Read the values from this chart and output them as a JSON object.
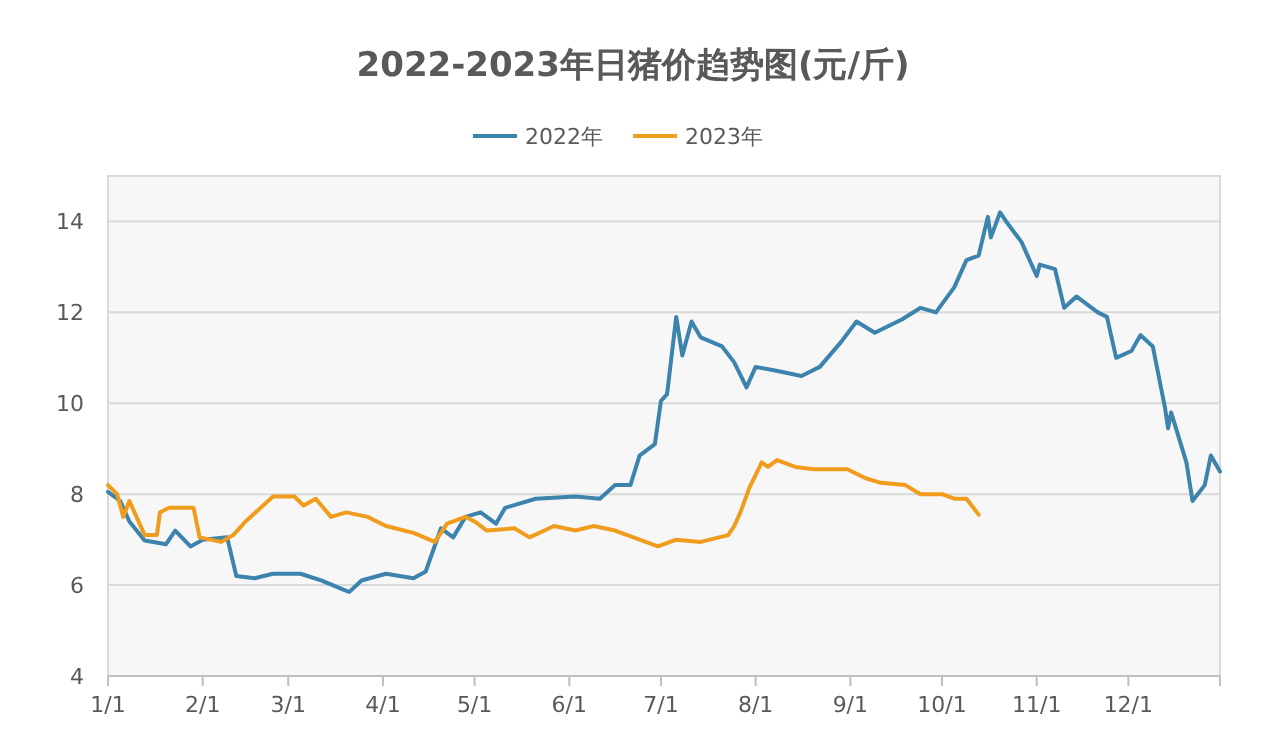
{
  "chart_data": {
    "type": "line",
    "title": "2022-2023年日猪价趋势图(元/斤)",
    "legend": "top",
    "grid": "y",
    "marker": "none",
    "line_style": "solid",
    "xlim": [
      "--01-01",
      "--12-31"
    ],
    "xticks": [
      {
        "value": "--01-01",
        "label": "1/1"
      },
      {
        "value": "--02-01",
        "label": "2/1"
      },
      {
        "value": "--03-01",
        "label": "3/1"
      },
      {
        "value": "--04-01",
        "label": "4/1"
      },
      {
        "value": "--05-01",
        "label": "5/1"
      },
      {
        "value": "--06-01",
        "label": "6/1"
      },
      {
        "value": "--07-01",
        "label": "7/1"
      },
      {
        "value": "--08-01",
        "label": "8/1"
      },
      {
        "value": "--09-01",
        "label": "9/1"
      },
      {
        "value": "--10-01",
        "label": "10/1"
      },
      {
        "value": "--11-01",
        "label": "11/1"
      },
      {
        "value": "--12-01",
        "label": "12/1"
      }
    ],
    "ylim": [
      4,
      15
    ],
    "yticks": [
      4,
      6,
      8,
      10,
      12,
      14
    ],
    "series": [
      {
        "name": "2022年",
        "color": "#3c84ad",
        "x": [
          "--01-01",
          "--01-05",
          "--01-08",
          "--01-13",
          "--01-20",
          "--01-23",
          "--01-28",
          "--02-01",
          "--02-09",
          "--02-12",
          "--02-18",
          "--02-24",
          "--03-05",
          "--03-12",
          "--03-19",
          "--03-21",
          "--03-25",
          "--04-02",
          "--04-11",
          "--04-15",
          "--04-20",
          "--04-24",
          "--04-28",
          "--05-03",
          "--05-08",
          "--05-11",
          "--05-21",
          "--06-03",
          "--06-11",
          "--06-16",
          "--06-21",
          "--06-24",
          "--06-29",
          "--07-01",
          "--07-03",
          "--07-06",
          "--07-08",
          "--07-11",
          "--07-14",
          "--07-21",
          "--07-25",
          "--07-29",
          "--08-01",
          "--08-09",
          "--08-16",
          "--08-22",
          "--08-29",
          "--09-03",
          "--09-09",
          "--09-18",
          "--09-24",
          "--09-29",
          "--10-05",
          "--10-09",
          "--10-13",
          "--10-16",
          "--10-17",
          "--10-20",
          "--10-22",
          "--10-27",
          "--11-01",
          "--11-02",
          "--11-07",
          "--11-10",
          "--11-14",
          "--11-21",
          "--11-24",
          "--11-27",
          "--12-02",
          "--12-05",
          "--12-09",
          "--12-13",
          "--12-14",
          "--12-15",
          "--12-20",
          "--12-22",
          "--12-26",
          "--12-28",
          "--12-31"
        ],
        "values": [
          8.05,
          7.85,
          7.4,
          6.98,
          6.9,
          7.2,
          6.85,
          7.0,
          7.05,
          6.2,
          6.15,
          6.25,
          6.25,
          6.1,
          5.9,
          5.85,
          6.1,
          6.25,
          6.15,
          6.3,
          7.25,
          7.05,
          7.5,
          7.6,
          7.35,
          7.7,
          7.9,
          7.95,
          7.9,
          8.2,
          8.2,
          8.85,
          9.1,
          10.05,
          10.2,
          11.9,
          11.05,
          11.8,
          11.45,
          11.25,
          10.9,
          10.35,
          10.8,
          10.7,
          10.6,
          10.8,
          11.35,
          11.8,
          11.55,
          11.85,
          12.1,
          12.0,
          12.55,
          13.15,
          13.25,
          14.1,
          13.65,
          14.2,
          14.0,
          13.55,
          12.8,
          13.05,
          12.95,
          12.1,
          12.35,
          12.0,
          11.9,
          11.0,
          11.15,
          11.5,
          11.25,
          9.9,
          9.45,
          9.8,
          8.7,
          7.85,
          8.2,
          8.85,
          8.5
        ]
      },
      {
        "name": "2023年",
        "color": "#f09c1c",
        "x": [
          "--01-01",
          "--01-04",
          "--01-06",
          "--01-08",
          "--01-10",
          "--01-13",
          "--01-17",
          "--01-18",
          "--01-21",
          "--01-29",
          "--01-31",
          "--02-07",
          "--02-11",
          "--02-15",
          "--02-20",
          "--02-24",
          "--03-03",
          "--03-06",
          "--03-10",
          "--03-15",
          "--03-20",
          "--03-27",
          "--04-02",
          "--04-11",
          "--04-18",
          "--04-22",
          "--04-28",
          "--05-01",
          "--05-05",
          "--05-14",
          "--05-19",
          "--05-27",
          "--06-03",
          "--06-09",
          "--06-16",
          "--06-22",
          "--06-30",
          "--07-06",
          "--07-14",
          "--07-23",
          "--07-25",
          "--07-27",
          "--07-30",
          "--08-03",
          "--08-05",
          "--08-08",
          "--08-14",
          "--08-20",
          "--08-31",
          "--09-06",
          "--09-11",
          "--09-19",
          "--09-24",
          "--10-01",
          "--10-05",
          "--10-09",
          "--10-13"
        ],
        "values": [
          8.2,
          8.0,
          7.5,
          7.85,
          7.55,
          7.1,
          7.1,
          7.6,
          7.7,
          7.7,
          7.05,
          6.95,
          7.1,
          7.4,
          7.7,
          7.95,
          7.95,
          7.75,
          7.9,
          7.5,
          7.6,
          7.5,
          7.3,
          7.15,
          6.95,
          7.35,
          7.5,
          7.4,
          7.2,
          7.25,
          7.05,
          7.3,
          7.2,
          7.3,
          7.2,
          7.05,
          6.85,
          7.0,
          6.95,
          7.1,
          7.3,
          7.6,
          8.15,
          8.7,
          8.6,
          8.75,
          8.6,
          8.55,
          8.55,
          8.35,
          8.25,
          8.2,
          8.0,
          8.0,
          7.9,
          7.9,
          7.55
        ]
      }
    ]
  }
}
